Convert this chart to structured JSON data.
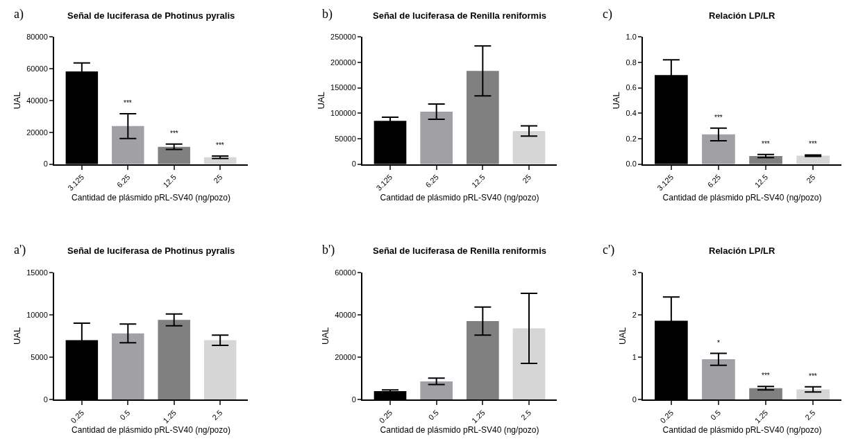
{
  "chart_data": [
    {
      "type": "bar",
      "title": "Señal de luciferasa de Photinus pyralis",
      "xlabel": "Cantidad de plásmido pRL-SV40 (ng/pozo)",
      "ylabel": "UAL",
      "categories": [
        "3.125",
        "6.25",
        "12.5",
        "25"
      ],
      "values": [
        58300,
        23900,
        10900,
        4300
      ],
      "errors": [
        5300,
        7800,
        1700,
        800
      ],
      "colors": [
        "#000000",
        "#a0a0a5",
        "#808080",
        "#d6d6d6"
      ],
      "ylim": [
        0,
        80000
      ],
      "yticks": [
        0,
        20000,
        40000,
        60000,
        80000
      ],
      "annotations": [
        "a)",
        {
          "text": "***",
          "x": "6.25",
          "y": 31700
        },
        {
          "text": "***",
          "x": "12.5",
          "y": 12600
        },
        {
          "text": "***",
          "x": "25",
          "y": 5100
        }
      ]
    },
    {
      "type": "bar",
      "title": "Señal de luciferasa de Renilla reniformis",
      "xlabel": "Cantidad de plásmido pRL-SV40 (ng/pozo)",
      "ylabel": "UAL",
      "categories": [
        "3.125",
        "6.25",
        "12.5",
        "25"
      ],
      "values": [
        85000,
        103000,
        183000,
        65000
      ],
      "errors": [
        7000,
        15000,
        49000,
        10000
      ],
      "colors": [
        "#000000",
        "#a0a0a5",
        "#808080",
        "#d6d6d6"
      ],
      "ylim": [
        0,
        250000
      ],
      "yticks": [
        0,
        50000,
        100000,
        150000,
        200000,
        250000
      ],
      "annotations": [
        "b)"
      ]
    },
    {
      "type": "bar",
      "title": "Relación LP/LR",
      "xlabel": "Cantidad de plásmido pRL-SV40 (ng/pozo)",
      "ylabel": "UAL",
      "categories": [
        "3.125",
        "6.25",
        "12.5",
        "25"
      ],
      "values": [
        0.7,
        0.233,
        0.063,
        0.066
      ],
      "errors": [
        0.12,
        0.05,
        0.012,
        0.006
      ],
      "colors": [
        "#000000",
        "#a0a0a5",
        "#808080",
        "#d6d6d6"
      ],
      "ylim": [
        0,
        1.0
      ],
      "yticks": [
        {
          "value": 0,
          "label": "0.0"
        },
        0.2,
        0.4,
        0.6,
        0.8,
        {
          "value": 1,
          "label": "1.0"
        }
      ],
      "annotations": [
        "c)",
        {
          "text": "***",
          "x": "6.25",
          "y": 0.283
        },
        {
          "text": "***",
          "x": "12.5",
          "y": 0.075
        },
        {
          "text": "***",
          "x": "25",
          "y": 0.072
        }
      ]
    },
    {
      "type": "bar",
      "title": "Señal de luciferasa de Photinus pyralis",
      "xlabel": "Cantidad de plásmido pRL-SV40 (ng/pozo)",
      "ylabel": "UAL",
      "categories": [
        "0.25",
        "0.5",
        "1.25",
        "2.5"
      ],
      "values": [
        7000,
        7800,
        9400,
        7000
      ],
      "errors": [
        2000,
        1100,
        700,
        600
      ],
      "colors": [
        "#000000",
        "#a0a0a5",
        "#808080",
        "#d6d6d6"
      ],
      "ylim": [
        0,
        15000
      ],
      "yticks": [
        0,
        5000,
        10000,
        15000
      ],
      "annotations": [
        "a')"
      ]
    },
    {
      "type": "bar",
      "title": "Señal de luciferasa de Renilla reniformis",
      "xlabel": "Cantidad de plásmido pRL-SV40 (ng/pozo)",
      "ylabel": "UAL",
      "categories": [
        "0.25",
        "0.5",
        "1.25",
        "2.5"
      ],
      "values": [
        4000,
        8600,
        37000,
        33600
      ],
      "errors": [
        600,
        1500,
        6600,
        16500
      ],
      "colors": [
        "#000000",
        "#a0a0a5",
        "#808080",
        "#d6d6d6"
      ],
      "ylim": [
        0,
        60000
      ],
      "yticks": [
        0,
        20000,
        40000,
        60000
      ],
      "annotations": [
        "b')"
      ]
    },
    {
      "type": "bar",
      "title": "Relación LP/LR",
      "xlabel": "Cantidad de plásmido pRL-SV40 (ng/pozo)",
      "ylabel": "UAL",
      "categories": [
        "0.25",
        "0.5",
        "1.25",
        "2.5"
      ],
      "values": [
        1.86,
        0.95,
        0.27,
        0.24
      ],
      "errors": [
        0.56,
        0.14,
        0.04,
        0.06
      ],
      "colors": [
        "#000000",
        "#a0a0a5",
        "#808080",
        "#d6d6d6"
      ],
      "ylim": [
        0,
        3
      ],
      "yticks": [
        0,
        1,
        2,
        3
      ],
      "annotations": [
        "c')",
        {
          "text": "*",
          "x": "0.5",
          "y": 1.09
        },
        {
          "text": "***",
          "x": "1.25",
          "y": 0.31
        },
        {
          "text": "***",
          "x": "2.5",
          "y": 0.3
        }
      ]
    }
  ]
}
